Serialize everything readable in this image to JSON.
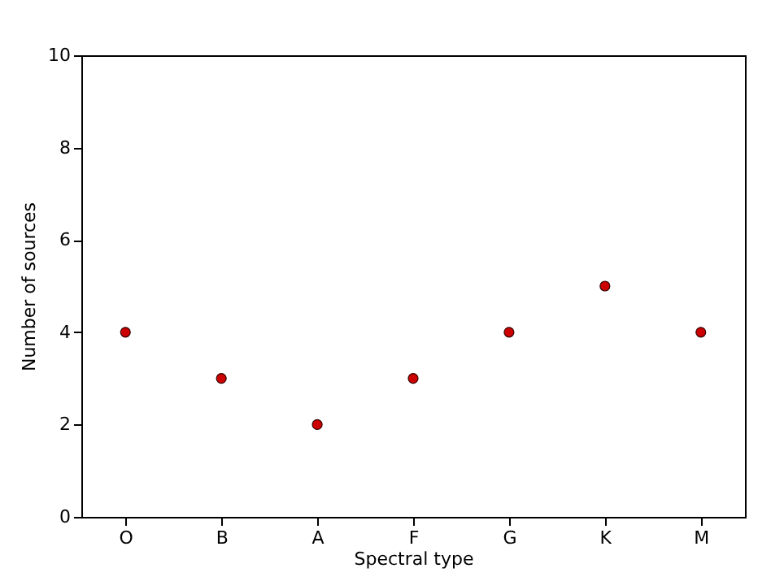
{
  "chart_data": {
    "type": "scatter",
    "xlabel": "Spectral type",
    "ylabel": "Number of sources",
    "categories": [
      "O",
      "B",
      "A",
      "F",
      "G",
      "K",
      "M"
    ],
    "series": [
      {
        "color": "#cc0000",
        "values": [
          4,
          3,
          2,
          3,
          4,
          5,
          4
        ]
      }
    ],
    "ylim": [
      0,
      10
    ],
    "yticks": [
      0,
      2,
      4,
      6,
      8,
      10
    ],
    "marker": "circle",
    "grid": false,
    "legend": false
  }
}
